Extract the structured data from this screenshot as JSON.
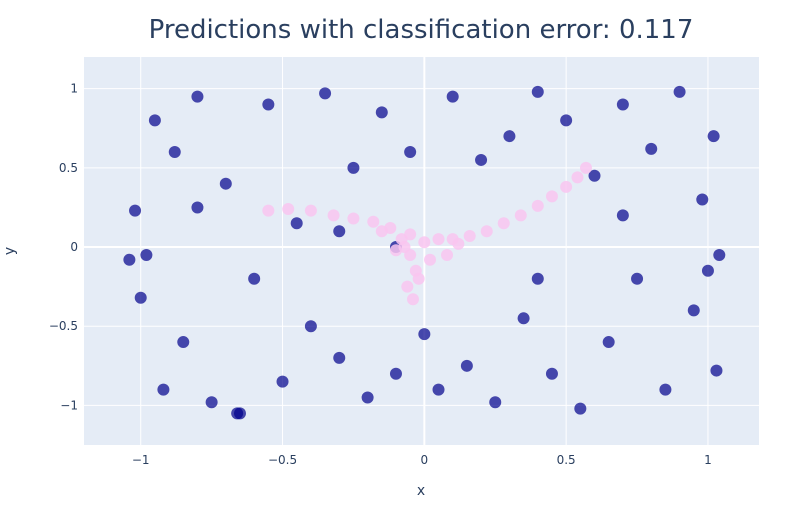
{
  "chart_data": {
    "type": "scatter",
    "title": "Predictions with classification error: 0.117",
    "xlabel": "x",
    "ylabel": "y",
    "xlim": [
      -1.2,
      1.18
    ],
    "ylim": [
      -1.25,
      1.2
    ],
    "xticks": [
      -1,
      -0.5,
      0,
      0.5,
      1
    ],
    "xtick_labels": [
      "−1",
      "−0.5",
      "0",
      "0.5",
      "1"
    ],
    "yticks": [
      -1,
      -0.5,
      0,
      0.5,
      1
    ],
    "ytick_labels": [
      "−1",
      "−0.5",
      "0",
      "0.5",
      "1"
    ],
    "grid": true,
    "legend": "none",
    "background_color": "#e5ecf6",
    "series": [
      {
        "color": "#00008b",
        "opacity": 0.7,
        "marker_radius": 6,
        "x": [
          -1.02,
          -1.0,
          -0.98,
          -0.95,
          -0.92,
          -0.88,
          -0.85,
          -0.8,
          -0.75,
          -0.7,
          -0.65,
          -0.6,
          -0.55,
          -0.5,
          -0.45,
          -0.4,
          -0.35,
          -0.3,
          -0.25,
          -0.2,
          -0.15,
          -0.1,
          -0.05,
          0.0,
          0.05,
          0.1,
          0.15,
          0.2,
          0.25,
          0.3,
          0.35,
          0.4,
          0.45,
          0.5,
          0.55,
          0.6,
          0.65,
          0.7,
          0.75,
          0.8,
          0.85,
          0.9,
          0.95,
          0.98,
          1.0,
          1.02,
          1.03,
          -1.04,
          -0.66,
          1.04,
          -0.3,
          0.4,
          -0.8,
          0.7,
          -0.1
        ],
        "y": [
          0.23,
          -0.32,
          -0.05,
          0.8,
          -0.9,
          0.6,
          -0.6,
          0.95,
          -0.98,
          0.4,
          -1.05,
          -0.2,
          0.9,
          -0.85,
          0.15,
          -0.5,
          0.97,
          -0.7,
          0.5,
          -0.95,
          0.85,
          -0.8,
          0.6,
          -0.55,
          -0.9,
          0.95,
          -0.75,
          0.55,
          -0.98,
          0.7,
          -0.45,
          0.98,
          -0.8,
          0.8,
          -1.02,
          0.45,
          -0.6,
          0.9,
          -0.2,
          0.62,
          -0.9,
          0.98,
          -0.4,
          0.3,
          -0.15,
          0.7,
          -0.78,
          -0.08,
          -1.05,
          -0.05,
          0.1,
          -0.2,
          0.25,
          0.2,
          0.0
        ]
      },
      {
        "color": "#f9c6f0",
        "opacity": 0.85,
        "marker_radius": 6,
        "x": [
          -0.55,
          -0.48,
          -0.4,
          -0.32,
          -0.25,
          -0.18,
          -0.12,
          -0.08,
          -0.05,
          -0.03,
          -0.06,
          -0.04,
          -0.02,
          0.0,
          0.05,
          0.1,
          0.16,
          0.22,
          0.28,
          0.34,
          0.4,
          0.45,
          0.5,
          0.54,
          0.57,
          -0.1,
          -0.07,
          0.02,
          0.08,
          -0.15,
          0.12,
          -0.05
        ],
        "y": [
          0.23,
          0.24,
          0.23,
          0.2,
          0.18,
          0.16,
          0.12,
          0.05,
          -0.05,
          -0.15,
          -0.25,
          -0.33,
          -0.2,
          0.03,
          0.05,
          0.05,
          0.07,
          0.1,
          0.15,
          0.2,
          0.26,
          0.32,
          0.38,
          0.44,
          0.5,
          -0.02,
          0.0,
          -0.08,
          -0.05,
          0.1,
          0.02,
          0.08
        ]
      }
    ]
  }
}
